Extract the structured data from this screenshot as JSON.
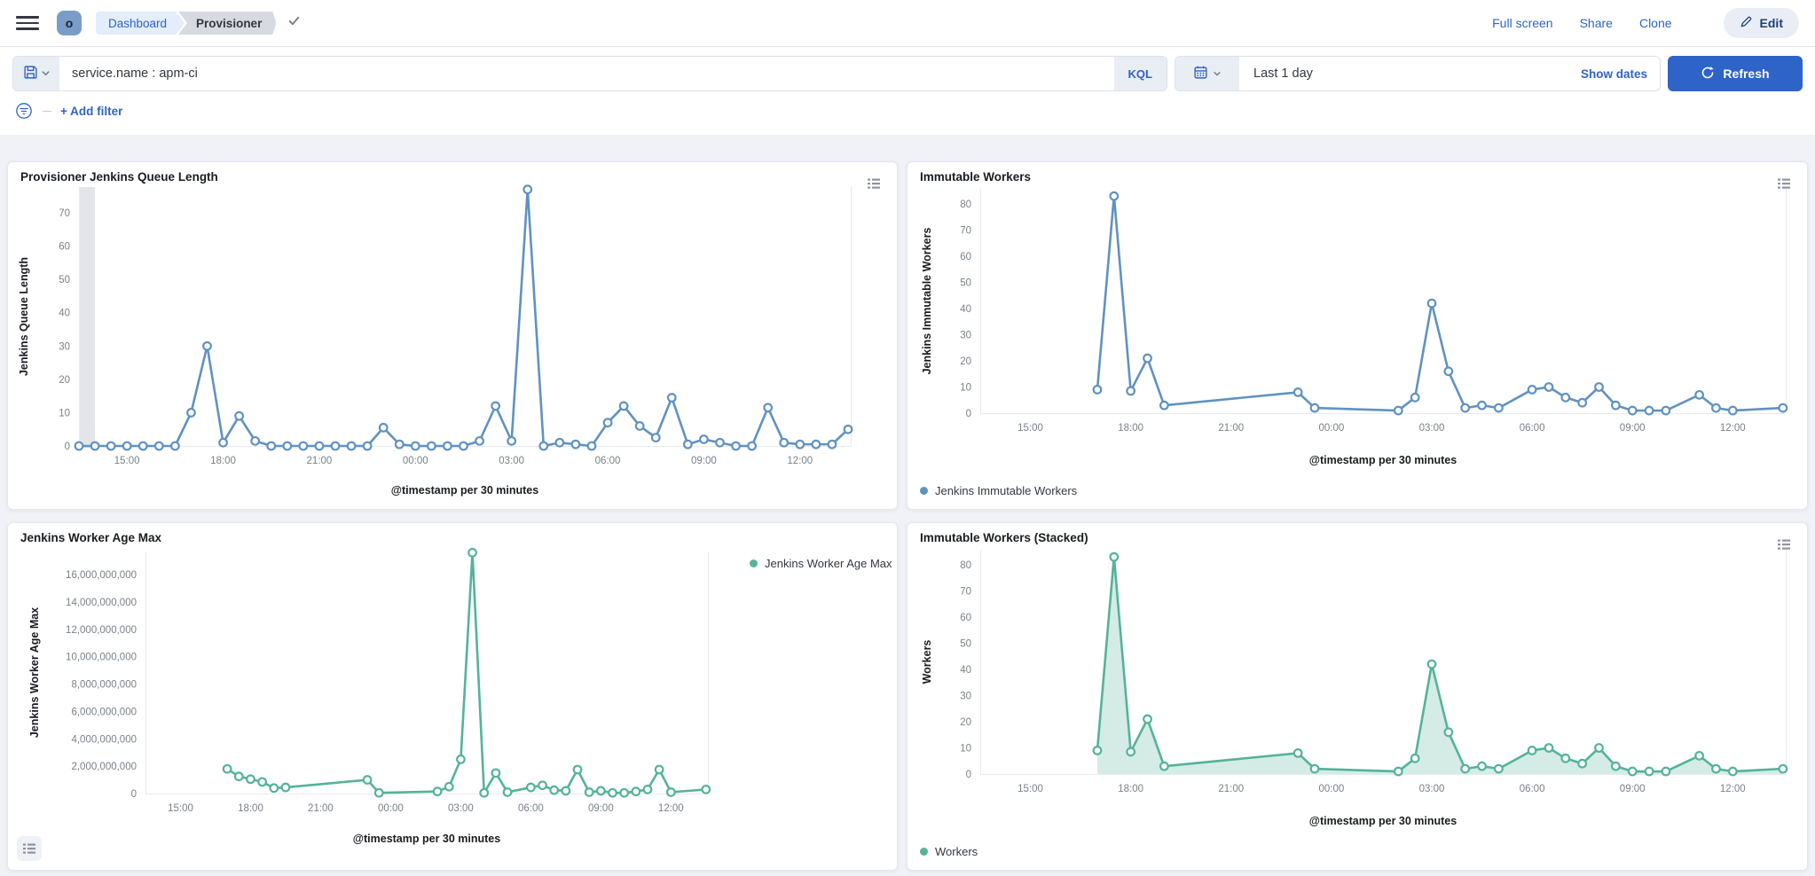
{
  "header": {
    "space_initial": "o",
    "breadcrumbs": [
      {
        "label": "Dashboard"
      },
      {
        "label": "Provisioner"
      }
    ],
    "actions": [
      "Full screen",
      "Share",
      "Clone"
    ],
    "edit_label": "Edit"
  },
  "query_bar": {
    "query": "service.name : apm-ci",
    "language_badge": "KQL",
    "time_range": "Last 1 day",
    "show_dates_label": "Show dates",
    "refresh_label": "Refresh"
  },
  "filter_bar": {
    "add_filter_label": "+ Add filter"
  },
  "colors": {
    "blue_series": "#6092C0",
    "green_series": "#54B399",
    "link_blue": "#2F64C3",
    "refresh_button": "#2E63C8",
    "band_gray": "#E4E5EA",
    "axis_line": "#E8EAF0"
  },
  "chart_data": [
    {
      "type": "line",
      "title": "Provisioner Jenkins Queue Length",
      "xlabel": "@timestamp per 30 minutes",
      "ylabel": "Jenkins Queue Length",
      "color": "#6092C0",
      "area": false,
      "grid": false,
      "legend_position": "hidden",
      "x_domain_minutes": [
        0,
        1445
      ],
      "x_ticks": [
        {
          "t": 90,
          "label": "15:00"
        },
        {
          "t": 270,
          "label": "18:00"
        },
        {
          "t": 450,
          "label": "21:00"
        },
        {
          "t": 630,
          "label": "00:00"
        },
        {
          "t": 810,
          "label": "03:00"
        },
        {
          "t": 990,
          "label": "06:00"
        },
        {
          "t": 1170,
          "label": "09:00"
        },
        {
          "t": 1350,
          "label": "12:00"
        }
      ],
      "y_ticks": [
        {
          "v": 0,
          "label": "0"
        },
        {
          "v": 10,
          "label": "10"
        },
        {
          "v": 20,
          "label": "20"
        },
        {
          "v": 30,
          "label": "30"
        },
        {
          "v": 40,
          "label": "40"
        },
        {
          "v": 50,
          "label": "50"
        },
        {
          "v": 60,
          "label": "60"
        },
        {
          "v": 70,
          "label": "70"
        }
      ],
      "ylim": [
        0,
        77
      ],
      "partial_bucket_band": {
        "t0": 0,
        "t1": 30
      },
      "series": [
        {
          "name": "Jenkins Queue Length",
          "points": [
            [
              0,
              0
            ],
            [
              30,
              0
            ],
            [
              60,
              0
            ],
            [
              90,
              0
            ],
            [
              120,
              0
            ],
            [
              150,
              0
            ],
            [
              180,
              0
            ],
            [
              210,
              10
            ],
            [
              240,
              30
            ],
            [
              270,
              1
            ],
            [
              300,
              9
            ],
            [
              330,
              1.5
            ],
            [
              360,
              0
            ],
            [
              390,
              0
            ],
            [
              420,
              0
            ],
            [
              450,
              0
            ],
            [
              480,
              0
            ],
            [
              510,
              0
            ],
            [
              540,
              0
            ],
            [
              570,
              5.5
            ],
            [
              600,
              0.5
            ],
            [
              630,
              0
            ],
            [
              660,
              0
            ],
            [
              690,
              0
            ],
            [
              720,
              0
            ],
            [
              750,
              1.5
            ],
            [
              780,
              12
            ],
            [
              810,
              1.5
            ],
            [
              840,
              77
            ],
            [
              870,
              0
            ],
            [
              900,
              1
            ],
            [
              930,
              0.5
            ],
            [
              960,
              0
            ],
            [
              990,
              7
            ],
            [
              1020,
              12
            ],
            [
              1050,
              6
            ],
            [
              1080,
              2.5
            ],
            [
              1110,
              14.5
            ],
            [
              1140,
              0.5
            ],
            [
              1170,
              2
            ],
            [
              1200,
              1
            ],
            [
              1230,
              0
            ],
            [
              1260,
              0
            ],
            [
              1290,
              11.5
            ],
            [
              1320,
              1
            ],
            [
              1350,
              0.5
            ],
            [
              1380,
              0.5
            ],
            [
              1410,
              0.5
            ],
            [
              1440,
              5
            ]
          ]
        }
      ],
      "legend": null
    },
    {
      "type": "line",
      "title": "Immutable Workers",
      "xlabel": "@timestamp per 30 minutes",
      "ylabel": "Jenkins Immutable Workers",
      "color": "#6092C0",
      "area": false,
      "grid": false,
      "legend_position": "bottom",
      "x_domain_minutes": [
        0,
        1445
      ],
      "x_ticks": [
        {
          "t": 90,
          "label": "15:00"
        },
        {
          "t": 270,
          "label": "18:00"
        },
        {
          "t": 450,
          "label": "21:00"
        },
        {
          "t": 630,
          "label": "00:00"
        },
        {
          "t": 810,
          "label": "03:00"
        },
        {
          "t": 990,
          "label": "06:00"
        },
        {
          "t": 1170,
          "label": "09:00"
        },
        {
          "t": 1350,
          "label": "12:00"
        }
      ],
      "y_ticks": [
        {
          "v": 0,
          "label": "0"
        },
        {
          "v": 10,
          "label": "10"
        },
        {
          "v": 20,
          "label": "20"
        },
        {
          "v": 30,
          "label": "30"
        },
        {
          "v": 40,
          "label": "40"
        },
        {
          "v": 50,
          "label": "50"
        },
        {
          "v": 60,
          "label": "60"
        },
        {
          "v": 70,
          "label": "70"
        },
        {
          "v": 80,
          "label": "80"
        }
      ],
      "ylim": [
        0,
        83
      ],
      "partial_bucket_band": null,
      "series": [
        {
          "name": "Jenkins Immutable Workers",
          "points": [
            [
              210,
              9
            ],
            [
              240,
              83
            ],
            [
              270,
              8.5
            ],
            [
              300,
              21
            ],
            [
              330,
              3
            ],
            [
              570,
              8
            ],
            [
              600,
              2
            ],
            [
              750,
              1
            ],
            [
              780,
              6
            ],
            [
              810,
              42
            ],
            [
              840,
              16
            ],
            [
              870,
              2
            ],
            [
              900,
              3
            ],
            [
              930,
              2
            ],
            [
              990,
              9
            ],
            [
              1020,
              10
            ],
            [
              1050,
              6
            ],
            [
              1080,
              4
            ],
            [
              1110,
              10
            ],
            [
              1140,
              3
            ],
            [
              1170,
              1
            ],
            [
              1200,
              1
            ],
            [
              1230,
              1
            ],
            [
              1290,
              7
            ],
            [
              1320,
              2
            ],
            [
              1350,
              1
            ],
            [
              1440,
              2
            ]
          ]
        }
      ],
      "legend": {
        "position": "bottom",
        "items": [
          {
            "label": "Jenkins Immutable Workers",
            "color": "#6092C0"
          }
        ]
      }
    },
    {
      "type": "line",
      "title": "Jenkins Worker Age Max",
      "xlabel": "@timestamp per 30 minutes",
      "ylabel": "Jenkins Worker Age Max",
      "color": "#54B399",
      "area": false,
      "grid": false,
      "legend_position": "right",
      "x_domain_minutes": [
        0,
        1445
      ],
      "x_ticks": [
        {
          "t": 90,
          "label": "15:00"
        },
        {
          "t": 270,
          "label": "18:00"
        },
        {
          "t": 450,
          "label": "21:00"
        },
        {
          "t": 630,
          "label": "00:00"
        },
        {
          "t": 810,
          "label": "03:00"
        },
        {
          "t": 990,
          "label": "06:00"
        },
        {
          "t": 1170,
          "label": "09:00"
        },
        {
          "t": 1350,
          "label": "12:00"
        }
      ],
      "y_ticks": [
        {
          "v": 0,
          "label": "0"
        },
        {
          "v": 2000000000,
          "label": "2,000,000,000"
        },
        {
          "v": 4000000000,
          "label": "4,000,000,000"
        },
        {
          "v": 6000000000,
          "label": "6,000,000,000"
        },
        {
          "v": 8000000000,
          "label": "8,000,000,000"
        },
        {
          "v": 10000000000,
          "label": "10,000,000,000"
        },
        {
          "v": 12000000000,
          "label": "12,000,000,000"
        },
        {
          "v": 14000000000,
          "label": "14,000,000,000"
        },
        {
          "v": 16000000000,
          "label": "16,000,000,000"
        }
      ],
      "ylim": [
        0,
        17600000000
      ],
      "partial_bucket_band": null,
      "series": [
        {
          "name": "Jenkins Worker Age Max",
          "points": [
            [
              210,
              1800000000
            ],
            [
              240,
              1250000000
            ],
            [
              270,
              1050000000
            ],
            [
              300,
              850000000
            ],
            [
              330,
              400000000
            ],
            [
              360,
              450000000
            ],
            [
              570,
              1000000000
            ],
            [
              600,
              50000000
            ],
            [
              750,
              150000000
            ],
            [
              780,
              500000000
            ],
            [
              810,
              2500000000
            ],
            [
              840,
              17600000000
            ],
            [
              870,
              50000000
            ],
            [
              900,
              1500000000
            ],
            [
              930,
              100000000
            ],
            [
              990,
              450000000
            ],
            [
              1020,
              600000000
            ],
            [
              1050,
              250000000
            ],
            [
              1080,
              200000000
            ],
            [
              1110,
              1750000000
            ],
            [
              1140,
              100000000
            ],
            [
              1170,
              200000000
            ],
            [
              1200,
              50000000
            ],
            [
              1230,
              50000000
            ],
            [
              1260,
              150000000
            ],
            [
              1290,
              300000000
            ],
            [
              1320,
              1750000000
            ],
            [
              1350,
              100000000
            ],
            [
              1440,
              300000000
            ]
          ]
        }
      ],
      "legend": {
        "position": "right",
        "items": [
          {
            "label": "Jenkins Worker Age Max",
            "color": "#54B399"
          }
        ]
      }
    },
    {
      "type": "area",
      "title": "Immutable Workers (Stacked)",
      "xlabel": "@timestamp per 30 minutes",
      "ylabel": "Workers",
      "color": "#54B399",
      "area": true,
      "grid": false,
      "legend_position": "bottom",
      "x_domain_minutes": [
        0,
        1445
      ],
      "x_ticks": [
        {
          "t": 90,
          "label": "15:00"
        },
        {
          "t": 270,
          "label": "18:00"
        },
        {
          "t": 450,
          "label": "21:00"
        },
        {
          "t": 630,
          "label": "00:00"
        },
        {
          "t": 810,
          "label": "03:00"
        },
        {
          "t": 990,
          "label": "06:00"
        },
        {
          "t": 1170,
          "label": "09:00"
        },
        {
          "t": 1350,
          "label": "12:00"
        }
      ],
      "y_ticks": [
        {
          "v": 0,
          "label": "0"
        },
        {
          "v": 10,
          "label": "10"
        },
        {
          "v": 20,
          "label": "20"
        },
        {
          "v": 30,
          "label": "30"
        },
        {
          "v": 40,
          "label": "40"
        },
        {
          "v": 50,
          "label": "50"
        },
        {
          "v": 60,
          "label": "60"
        },
        {
          "v": 70,
          "label": "70"
        },
        {
          "v": 80,
          "label": "80"
        }
      ],
      "ylim": [
        0,
        83
      ],
      "partial_bucket_band": null,
      "series": [
        {
          "name": "Workers",
          "points": [
            [
              210,
              9
            ],
            [
              240,
              83
            ],
            [
              270,
              8.5
            ],
            [
              300,
              21
            ],
            [
              330,
              3
            ],
            [
              570,
              8
            ],
            [
              600,
              2
            ],
            [
              750,
              1
            ],
            [
              780,
              6
            ],
            [
              810,
              42
            ],
            [
              840,
              16
            ],
            [
              870,
              2
            ],
            [
              900,
              3
            ],
            [
              930,
              2
            ],
            [
              990,
              9
            ],
            [
              1020,
              10
            ],
            [
              1050,
              6
            ],
            [
              1080,
              4
            ],
            [
              1110,
              10
            ],
            [
              1140,
              3
            ],
            [
              1170,
              1
            ],
            [
              1200,
              1
            ],
            [
              1230,
              1
            ],
            [
              1290,
              7
            ],
            [
              1320,
              2
            ],
            [
              1350,
              1
            ],
            [
              1440,
              2
            ]
          ]
        }
      ],
      "legend": {
        "position": "bottom",
        "items": [
          {
            "label": "Workers",
            "color": "#54B399"
          }
        ]
      }
    }
  ]
}
